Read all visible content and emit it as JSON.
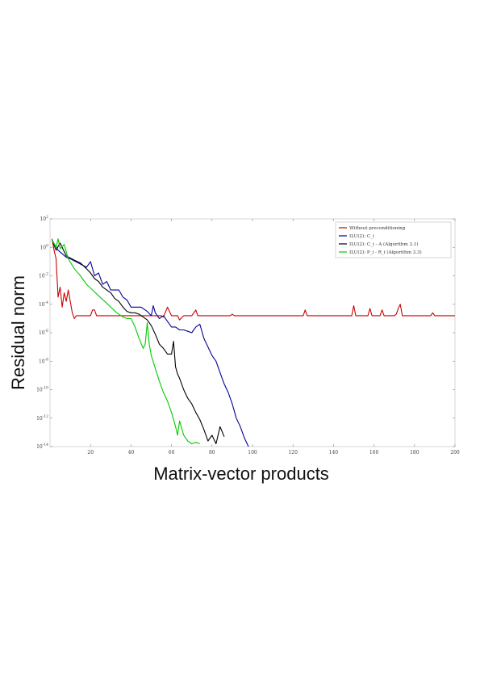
{
  "chart_data": {
    "type": "line",
    "xlabel": "Matrix-vector products",
    "ylabel": "Residual norm",
    "xlim": [
      0,
      200
    ],
    "ylim": [
      -14,
      2
    ],
    "y_scale": "log",
    "x_ticks": [
      20,
      40,
      60,
      80,
      100,
      120,
      140,
      160,
      180,
      200
    ],
    "x_tick_labels": [
      "20",
      "40",
      "60",
      "80",
      "100",
      "120",
      "140",
      "160",
      "180",
      "200"
    ],
    "y_ticks": [
      2,
      0,
      -2,
      -4,
      -6,
      -8,
      -10,
      -12,
      -14
    ],
    "y_tick_labels": [
      "10",
      "10",
      "10",
      "10",
      "10",
      "10",
      "10",
      "10",
      "10"
    ],
    "y_tick_exponents": [
      "2",
      "0",
      "-2",
      "-4",
      "-6",
      "-8",
      "-10",
      "-12",
      "-14"
    ],
    "grid": false,
    "legend_position": "top-right",
    "series": [
      {
        "name": "Without preconditioning",
        "color": "#cc0000",
        "x": [
          1,
          2,
          3,
          4,
          5,
          6,
          7,
          8,
          9,
          10,
          11,
          12,
          13,
          14,
          15,
          20,
          21,
          22,
          23,
          25,
          30,
          40,
          55,
          56,
          58,
          60,
          63,
          64,
          66,
          70,
          72,
          73,
          74,
          80,
          89,
          90,
          91,
          100,
          120,
          125,
          126,
          127,
          140,
          149,
          150,
          151,
          157,
          158,
          159,
          163,
          164,
          165,
          170,
          171,
          172,
          173,
          174,
          175,
          180,
          188,
          189,
          190,
          195,
          200
        ],
        "y": [
          0.6,
          -0.2,
          -0.8,
          -3.5,
          -2.8,
          -4.2,
          -3.2,
          -3.8,
          -3.0,
          -3.8,
          -4.6,
          -5.0,
          -4.8,
          -4.8,
          -4.8,
          -4.8,
          -4.4,
          -4.4,
          -4.8,
          -4.8,
          -4.8,
          -4.8,
          -4.8,
          -4.9,
          -4.2,
          -4.8,
          -4.8,
          -5.1,
          -4.8,
          -4.8,
          -4.4,
          -4.8,
          -4.8,
          -4.8,
          -4.8,
          -4.7,
          -4.8,
          -4.8,
          -4.8,
          -4.8,
          -4.4,
          -4.8,
          -4.8,
          -4.8,
          -4.1,
          -4.8,
          -4.8,
          -4.3,
          -4.8,
          -4.8,
          -4.4,
          -4.8,
          -4.8,
          -4.7,
          -4.3,
          -4.0,
          -4.8,
          -4.8,
          -4.8,
          -4.8,
          -4.6,
          -4.8,
          -4.8,
          -4.8
        ]
      },
      {
        "name": "ILU(2): C_i",
        "color": "#000099",
        "x": [
          1,
          4,
          8,
          10,
          14,
          18,
          20,
          22,
          24,
          26,
          28,
          30,
          34,
          36,
          38,
          40,
          45,
          48,
          50,
          51,
          52,
          54,
          56,
          58,
          60,
          62,
          64,
          66,
          68,
          70,
          72,
          74,
          76,
          78,
          80,
          82,
          84,
          86,
          88,
          90,
          92,
          94,
          96,
          98
        ],
        "y": [
          0.5,
          -0.2,
          -0.7,
          -0.8,
          -1.1,
          -1.4,
          -1.0,
          -2.0,
          -1.8,
          -2.6,
          -2.4,
          -3.0,
          -3.0,
          -3.5,
          -3.7,
          -4.2,
          -4.2,
          -4.5,
          -4.8,
          -4.1,
          -4.6,
          -5.0,
          -4.8,
          -5.2,
          -5.6,
          -5.6,
          -5.8,
          -5.8,
          -5.9,
          -6.0,
          -5.6,
          -5.4,
          -6.4,
          -7.0,
          -7.6,
          -8.0,
          -8.8,
          -9.6,
          -10.2,
          -11.0,
          -12.0,
          -12.6,
          -13.4,
          -14.0
        ]
      },
      {
        "name": "ILU(2): C_i - A (Algorithm 3.1)",
        "color": "#000000",
        "x": [
          1,
          3,
          5,
          8,
          12,
          15,
          18,
          20,
          22,
          24,
          26,
          28,
          30,
          32,
          34,
          36,
          38,
          40,
          42,
          44,
          46,
          48,
          50,
          52,
          54,
          56,
          58,
          60,
          61,
          62,
          63,
          64,
          66,
          68,
          70,
          72,
          74,
          76,
          78,
          80,
          82,
          84,
          86
        ],
        "y": [
          0.5,
          -0.2,
          0.3,
          -0.6,
          -0.9,
          -1.1,
          -1.5,
          -1.8,
          -2.2,
          -2.4,
          -2.8,
          -3.0,
          -3.2,
          -3.6,
          -3.8,
          -4.2,
          -4.5,
          -4.6,
          -4.6,
          -4.7,
          -4.9,
          -5.1,
          -5.5,
          -6.1,
          -6.8,
          -7.1,
          -7.5,
          -7.5,
          -6.6,
          -8.4,
          -8.9,
          -9.2,
          -10.0,
          -10.6,
          -11.0,
          -11.6,
          -12.1,
          -12.8,
          -13.6,
          -13.2,
          -13.8,
          -12.6,
          -13.3
        ]
      },
      {
        "name": "ILU(2): P_i - R_i (Algorithm 3.3)",
        "color": "#00cc00",
        "x": [
          1,
          3,
          4,
          5,
          7,
          9,
          12,
          15,
          18,
          21,
          24,
          27,
          30,
          33,
          36,
          38,
          40,
          42,
          44,
          46,
          47,
          48,
          49,
          50,
          52,
          54,
          56,
          58,
          60,
          62,
          63,
          64,
          66,
          68,
          70,
          72,
          74
        ],
        "y": [
          0.5,
          0.0,
          0.6,
          -0.1,
          0.2,
          -0.8,
          -1.5,
          -2.0,
          -2.6,
          -3.0,
          -3.4,
          -3.8,
          -4.2,
          -4.6,
          -4.9,
          -5.0,
          -5.0,
          -5.6,
          -6.4,
          -7.1,
          -6.8,
          -5.3,
          -6.8,
          -7.6,
          -8.5,
          -9.4,
          -10.2,
          -10.8,
          -11.6,
          -12.6,
          -13.2,
          -12.2,
          -13.2,
          -13.6,
          -13.8,
          -13.7,
          -13.8
        ]
      }
    ]
  }
}
